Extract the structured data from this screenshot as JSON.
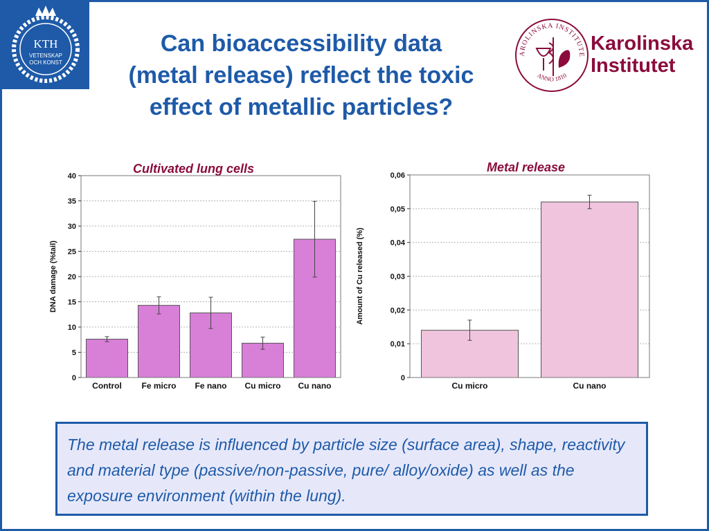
{
  "slide": {
    "title_lines": [
      "Can bioaccessibility data",
      "(metal release) reflect the toxic",
      "effect of metallic particles?"
    ],
    "note": "The metal release is influenced by particle size (surface area), shape, reactivity and material type (passive/non-passive, pure/ alloy/oxide) as well as the exposure environment (within the lung).",
    "colors": {
      "title": "#1e5aa8",
      "accent_red": "#8b0c3c",
      "frame": "#1f5aa6",
      "note_bg": "#e6e8fa"
    }
  },
  "logos": {
    "kth": {
      "icon": "kth-crest-icon",
      "text_lines": [
        "KTH",
        "VETENSKAP",
        "OCH KONST"
      ]
    },
    "karolinska": {
      "icon": "karolinska-seal-icon",
      "seal_text": "KAROLINSKA INSTITUTET",
      "seal_year": "ANNO 1810",
      "name_lines": [
        "Karolinska",
        "Institutet"
      ]
    }
  },
  "chart_data": [
    {
      "type": "bar",
      "title": "Cultivated lung cells",
      "ylabel": "DNA damage (%tail)",
      "xlabel": "",
      "categories": [
        "Control",
        "Fe micro",
        "Fe nano",
        "Cu micro",
        "Cu nano"
      ],
      "values": [
        7.6,
        14.3,
        12.8,
        6.8,
        27.4
      ],
      "error": [
        0.5,
        1.7,
        3.1,
        1.2,
        7.5
      ],
      "ylim": [
        0,
        40
      ],
      "yticks": [
        "0",
        "5",
        "10",
        "15",
        "20",
        "25",
        "30",
        "35",
        "40"
      ],
      "grid": true,
      "bar_color": "#d87fd8"
    },
    {
      "type": "bar",
      "title": "Metal release",
      "ylabel": "Amount of Cu released (%)",
      "xlabel": "",
      "categories": [
        "Cu micro",
        "Cu nano"
      ],
      "values": [
        0.014,
        0.052
      ],
      "error": [
        0.003,
        0.002
      ],
      "ylim": [
        0,
        0.06
      ],
      "yticks": [
        "0",
        "0,01",
        "0,02",
        "0,03",
        "0,04",
        "0,05",
        "0,06"
      ],
      "grid": true,
      "bar_color": "#f0c4dd"
    }
  ]
}
